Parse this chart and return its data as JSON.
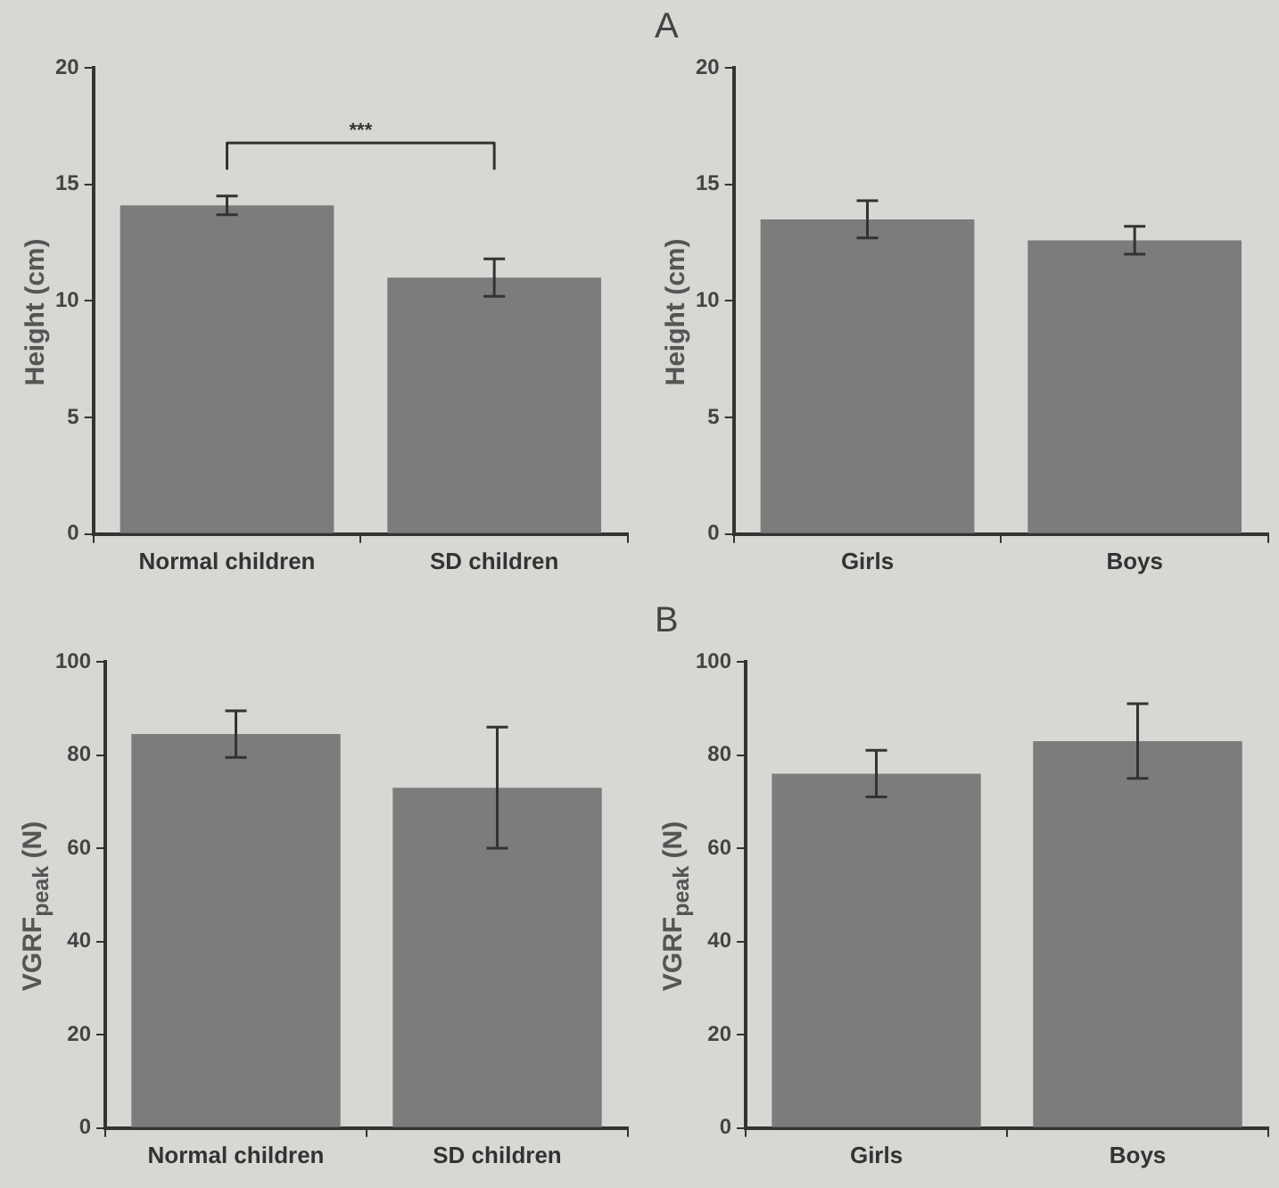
{
  "chart_data": [
    {
      "type": "bar",
      "ylabel": "Height  (cm)",
      "categories": [
        "Normal children",
        "SD children"
      ],
      "values": [
        14.1,
        11.0
      ],
      "errors": [
        0.4,
        0.8
      ],
      "color": "#7c7c7c",
      "ylim": [
        0,
        20
      ],
      "yticks": [
        0,
        5,
        10,
        15,
        20
      ],
      "grid": false,
      "legend": false,
      "annotations": [
        "***"
      ]
    },
    {
      "type": "bar",
      "title": "A",
      "ylabel": "Height  (cm)",
      "categories": [
        "Girls",
        "Boys"
      ],
      "values": [
        13.5,
        12.6
      ],
      "errors": [
        0.8,
        0.6
      ],
      "color": "#7c7c7c",
      "ylim": [
        0,
        20
      ],
      "yticks": [
        0,
        5,
        10,
        15,
        20
      ],
      "grid": false,
      "legend": false
    },
    {
      "type": "bar",
      "ylabel": "VGRF$_{peak}$  (N)",
      "categories": [
        "Normal children",
        "SD children"
      ],
      "values": [
        84.5,
        73
      ],
      "errors": [
        5,
        13
      ],
      "color": "#7c7c7c",
      "ylim": [
        0,
        100
      ],
      "yticks": [
        0,
        20,
        40,
        60,
        80,
        100
      ],
      "grid": false,
      "legend": false
    },
    {
      "type": "bar",
      "title": "B",
      "ylabel": "VGRF$_{peak}$  (N)",
      "categories": [
        "Girls",
        "Boys"
      ],
      "values": [
        76,
        83
      ],
      "errors": [
        5,
        8
      ],
      "color": "#7c7c7c",
      "ylim": [
        0,
        100
      ],
      "yticks": [
        0,
        20,
        40,
        60,
        80,
        100
      ],
      "grid": false,
      "legend": false
    }
  ]
}
